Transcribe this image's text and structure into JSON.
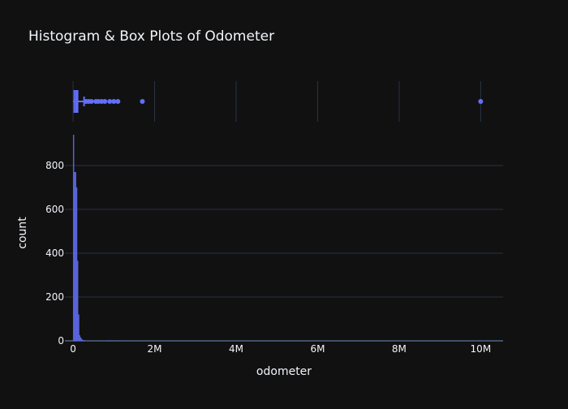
{
  "chart_data": {
    "type": "histogram",
    "title": "Histogram & Box Plots of Odometer",
    "xlabel": "odometer",
    "ylabel": "count",
    "xlim": [
      -200000,
      10550000
    ],
    "ylim": [
      0,
      1000
    ],
    "x_tick_values": [
      0,
      2000000,
      4000000,
      6000000,
      8000000,
      10000000
    ],
    "x_tick_labels": [
      "0",
      "2M",
      "4M",
      "6M",
      "8M",
      "10M"
    ],
    "y_tick_values": [
      0,
      200,
      400,
      600,
      800
    ],
    "y_tick_labels": [
      "0",
      "200",
      "400",
      "600",
      "800"
    ],
    "bin_width": 25000,
    "bins": [
      {
        "start": 0,
        "count": 940
      },
      {
        "start": 25000,
        "count": 770
      },
      {
        "start": 50000,
        "count": 770
      },
      {
        "start": 75000,
        "count": 700
      },
      {
        "start": 100000,
        "count": 365
      },
      {
        "start": 125000,
        "count": 120
      },
      {
        "start": 150000,
        "count": 25
      },
      {
        "start": 175000,
        "count": 15
      },
      {
        "start": 200000,
        "count": 8
      },
      {
        "start": 225000,
        "count": 4
      },
      {
        "start": 250000,
        "count": 2
      },
      {
        "start": 275000,
        "count": 1
      },
      {
        "start": 850000,
        "count": 1
      },
      {
        "start": 900000,
        "count": 1
      },
      {
        "start": 1000000,
        "count": 1
      },
      {
        "start": 1100000,
        "count": 1
      },
      {
        "start": 9975000,
        "count": 1
      }
    ],
    "box": {
      "min": 0,
      "q1": 30000,
      "median": 75000,
      "q3": 110000,
      "upper_fence": 270000,
      "outliers": [
        320000,
        380000,
        450000,
        560000,
        620000,
        700000,
        780000,
        900000,
        1000000,
        1100000,
        1700000,
        10000000
      ]
    },
    "colors": {
      "background": "#111111",
      "bar": "#636efa",
      "bar_fill": "#5a64d8",
      "grid": "#283442",
      "text": "#f2f5fa",
      "axis_line": "#506784"
    }
  }
}
